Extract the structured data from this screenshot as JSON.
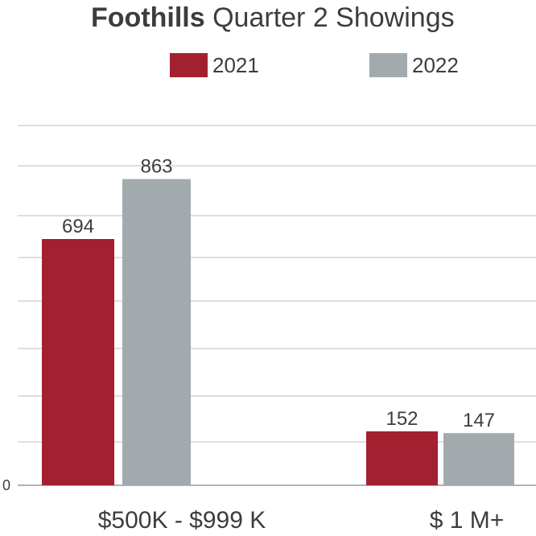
{
  "chart_data": {
    "type": "bar",
    "title_bold": "Foothills",
    "title_rest": "Quarter 2 Showings",
    "categories": [
      "$500K - $999 K",
      "$ 1 M+"
    ],
    "series": [
      {
        "name": "2021",
        "color": "#a32031",
        "values": [
          694,
          152
        ]
      },
      {
        "name": "2022",
        "color": "#a3aaae",
        "values": [
          863,
          147
        ]
      }
    ],
    "data_labels": [
      [
        "694",
        "152"
      ],
      [
        "863",
        "147"
      ]
    ],
    "y_tick_labels": [
      "0"
    ],
    "ylim": [
      0,
      1000
    ],
    "grid": true,
    "legend_position": "top-center"
  }
}
